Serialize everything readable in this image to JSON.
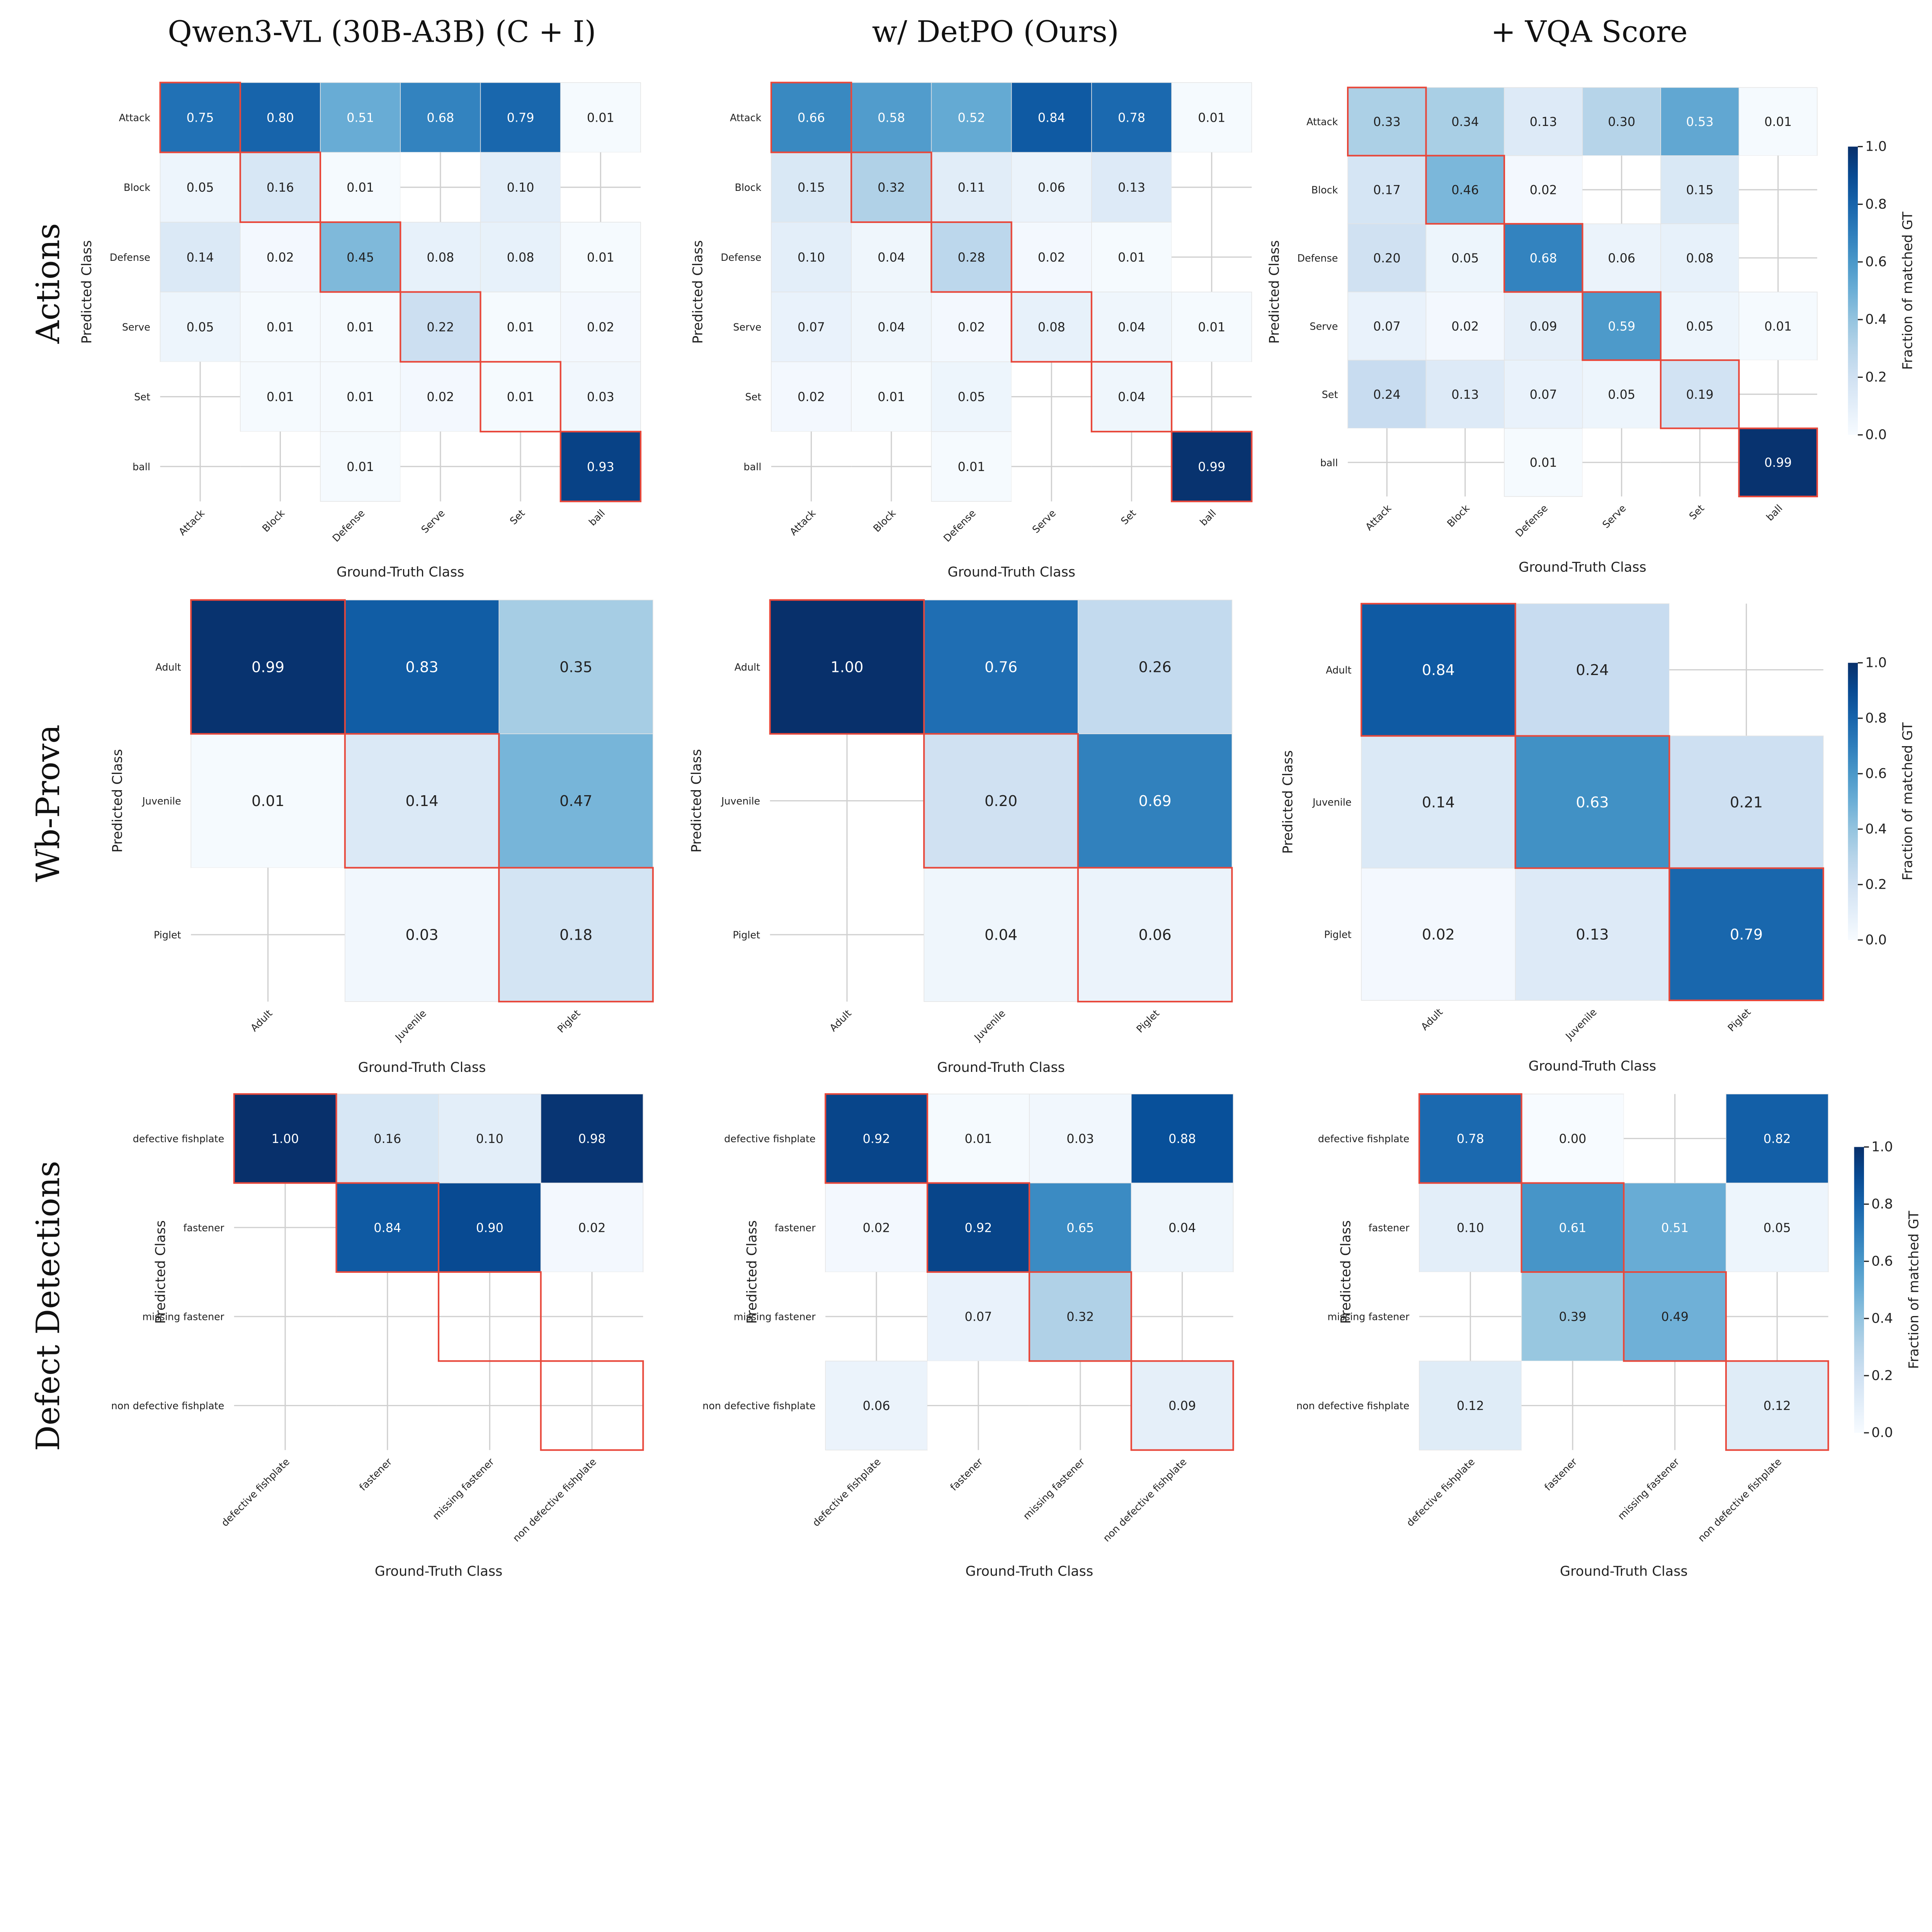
{
  "column_titles": [
    "Qwen3-VL (30B-A3B) (C + I)",
    "w/ DetPO (Ours)",
    "+ VQA Score"
  ],
  "row_titles": [
    "Actions",
    "Wb-Prova",
    "Defect Detections"
  ],
  "colorbar": {
    "label": "Fraction of matched GT",
    "ticks": [
      "0.0",
      "0.2",
      "0.4",
      "0.6",
      "0.8",
      "1.0"
    ],
    "range": [
      0,
      1
    ],
    "colormap": "Blues"
  },
  "highlight_color": "#e8473a",
  "chart_data": [
    {
      "type": "heatmap",
      "row": "Actions",
      "column": "Qwen3-VL (30B-A3B) (C + I)",
      "xlabel": "Ground-Truth Class",
      "ylabel": "Predicted Class",
      "x_categories": [
        "Attack",
        "Block",
        "Defense",
        "Serve",
        "Set",
        "ball"
      ],
      "y_categories": [
        "Attack",
        "Block",
        "Defense",
        "Serve",
        "Set",
        "ball"
      ],
      "values": [
        [
          0.75,
          0.8,
          0.51,
          0.68,
          0.79,
          0.01
        ],
        [
          0.05,
          0.16,
          0.01,
          null,
          0.1,
          null
        ],
        [
          0.14,
          0.02,
          0.45,
          0.08,
          0.08,
          0.01
        ],
        [
          0.05,
          0.01,
          0.01,
          0.22,
          0.01,
          0.02
        ],
        [
          null,
          0.01,
          0.01,
          0.02,
          0.01,
          0.03
        ],
        [
          null,
          null,
          0.01,
          null,
          null,
          0.93
        ]
      ]
    },
    {
      "type": "heatmap",
      "row": "Actions",
      "column": "w/ DetPO (Ours)",
      "xlabel": "Ground-Truth Class",
      "ylabel": "Predicted Class",
      "x_categories": [
        "Attack",
        "Block",
        "Defense",
        "Serve",
        "Set",
        "ball"
      ],
      "y_categories": [
        "Attack",
        "Block",
        "Defense",
        "Serve",
        "Set",
        "ball"
      ],
      "values": [
        [
          0.66,
          0.58,
          0.52,
          0.84,
          0.78,
          0.01
        ],
        [
          0.15,
          0.32,
          0.11,
          0.06,
          0.13,
          null
        ],
        [
          0.1,
          0.04,
          0.28,
          0.02,
          0.01,
          null
        ],
        [
          0.07,
          0.04,
          0.02,
          0.08,
          0.04,
          0.01
        ],
        [
          0.02,
          0.01,
          0.05,
          null,
          0.04,
          null
        ],
        [
          null,
          null,
          0.01,
          null,
          null,
          0.99
        ]
      ]
    },
    {
      "type": "heatmap",
      "row": "Actions",
      "column": "+ VQA Score",
      "xlabel": "Ground-Truth Class",
      "ylabel": "Predicted Class",
      "x_categories": [
        "Attack",
        "Block",
        "Defense",
        "Serve",
        "Set",
        "ball"
      ],
      "y_categories": [
        "Attack",
        "Block",
        "Defense",
        "Serve",
        "Set",
        "ball"
      ],
      "values": [
        [
          0.33,
          0.34,
          0.13,
          0.3,
          0.53,
          0.01
        ],
        [
          0.17,
          0.46,
          0.02,
          null,
          0.15,
          null
        ],
        [
          0.2,
          0.05,
          0.68,
          0.06,
          0.08,
          null
        ],
        [
          0.07,
          0.02,
          0.09,
          0.59,
          0.05,
          0.01
        ],
        [
          0.24,
          0.13,
          0.07,
          0.05,
          0.19,
          null
        ],
        [
          null,
          null,
          0.01,
          null,
          null,
          0.99
        ]
      ]
    },
    {
      "type": "heatmap",
      "row": "Wb-Prova",
      "column": "Qwen3-VL (30B-A3B) (C + I)",
      "xlabel": "Ground-Truth Class",
      "ylabel": "Predicted Class",
      "x_categories": [
        "Adult",
        "Juvenile",
        "Piglet"
      ],
      "y_categories": [
        "Adult",
        "Juvenile",
        "Piglet"
      ],
      "values": [
        [
          0.99,
          0.83,
          0.35
        ],
        [
          0.01,
          0.14,
          0.47
        ],
        [
          null,
          0.03,
          0.18
        ]
      ]
    },
    {
      "type": "heatmap",
      "row": "Wb-Prova",
      "column": "w/ DetPO (Ours)",
      "xlabel": "Ground-Truth Class",
      "ylabel": "Predicted Class",
      "x_categories": [
        "Adult",
        "Juvenile",
        "Piglet"
      ],
      "y_categories": [
        "Adult",
        "Juvenile",
        "Piglet"
      ],
      "values": [
        [
          1.0,
          0.76,
          0.26
        ],
        [
          null,
          0.2,
          0.69
        ],
        [
          null,
          0.04,
          0.06
        ]
      ]
    },
    {
      "type": "heatmap",
      "row": "Wb-Prova",
      "column": "+ VQA Score",
      "xlabel": "Ground-Truth Class",
      "ylabel": "Predicted Class",
      "x_categories": [
        "Adult",
        "Juvenile",
        "Piglet"
      ],
      "y_categories": [
        "Adult",
        "Juvenile",
        "Piglet"
      ],
      "values": [
        [
          0.84,
          0.24,
          null
        ],
        [
          0.14,
          0.63,
          0.21
        ],
        [
          0.02,
          0.13,
          0.79
        ]
      ]
    },
    {
      "type": "heatmap",
      "row": "Defect Detections",
      "column": "Qwen3-VL (30B-A3B) (C + I)",
      "xlabel": "Ground-Truth Class",
      "ylabel": "Predicted Class",
      "x_categories": [
        "defective fishplate",
        "fastener",
        "missing fastener",
        "non defective fishplate"
      ],
      "y_categories": [
        "defective fishplate",
        "fastener",
        "missing fastener",
        "non defective fishplate"
      ],
      "values": [
        [
          1.0,
          0.16,
          0.1,
          0.98
        ],
        [
          null,
          0.84,
          0.9,
          0.02
        ],
        [
          null,
          null,
          null,
          null
        ],
        [
          null,
          null,
          null,
          null
        ]
      ]
    },
    {
      "type": "heatmap",
      "row": "Defect Detections",
      "column": "w/ DetPO (Ours)",
      "xlabel": "Ground-Truth Class",
      "ylabel": "Predicted Class",
      "x_categories": [
        "defective fishplate",
        "fastener",
        "missing fastener",
        "non defective fishplate"
      ],
      "y_categories": [
        "defective fishplate",
        "fastener",
        "missing fastener",
        "non defective fishplate"
      ],
      "values": [
        [
          0.92,
          0.01,
          0.03,
          0.88
        ],
        [
          0.02,
          0.92,
          0.65,
          0.04
        ],
        [
          null,
          0.07,
          0.32,
          null
        ],
        [
          0.06,
          null,
          null,
          0.09
        ]
      ]
    },
    {
      "type": "heatmap",
      "row": "Defect Detections",
      "column": "+ VQA Score",
      "xlabel": "Ground-Truth Class",
      "ylabel": "Predicted Class",
      "x_categories": [
        "defective fishplate",
        "fastener",
        "missing fastener",
        "non defective fishplate"
      ],
      "y_categories": [
        "defective fishplate",
        "fastener",
        "missing fastener",
        "non defective fishplate"
      ],
      "values": [
        [
          0.78,
          0.0,
          null,
          0.82
        ],
        [
          0.1,
          0.61,
          0.51,
          0.05
        ],
        [
          null,
          0.39,
          0.49,
          null
        ],
        [
          0.12,
          null,
          null,
          0.12
        ]
      ]
    }
  ]
}
